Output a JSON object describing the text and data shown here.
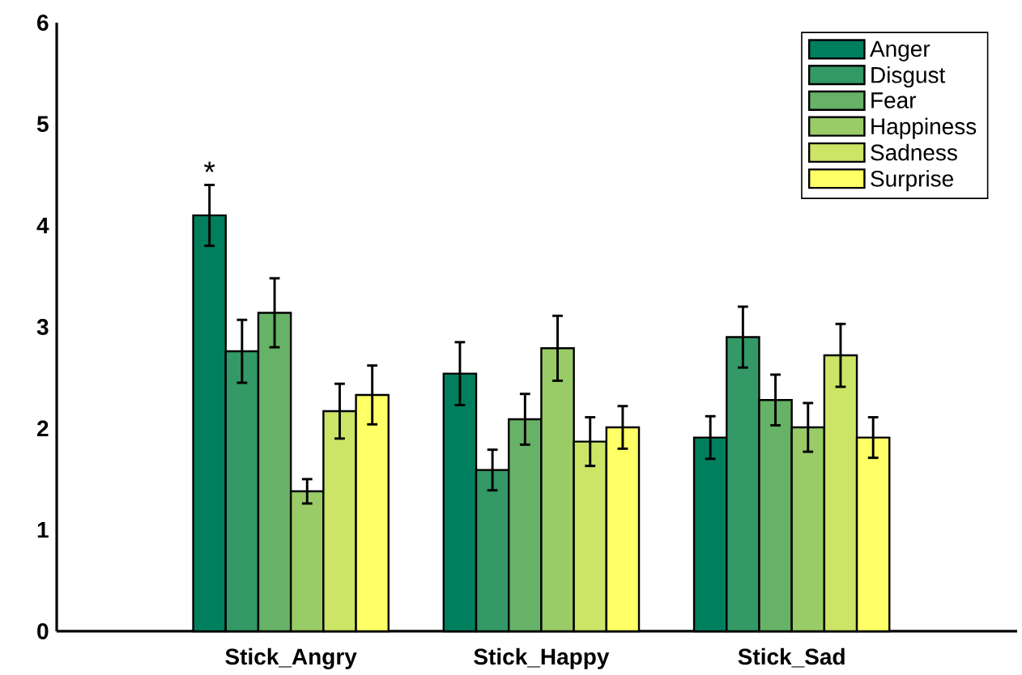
{
  "chart_data": {
    "type": "bar",
    "categories": [
      "Stick_Angry",
      "Stick_Happy",
      "Stick_Sad"
    ],
    "series": [
      {
        "name": "Anger",
        "color": "#007f5f",
        "values": [
          4.1,
          2.54,
          1.91
        ],
        "errors": [
          0.3,
          0.31,
          0.21
        ]
      },
      {
        "name": "Disgust",
        "color": "#339966",
        "values": [
          2.76,
          1.59,
          2.9
        ],
        "errors": [
          0.31,
          0.2,
          0.3
        ]
      },
      {
        "name": "Fear",
        "color": "#66b266",
        "values": [
          3.14,
          2.09,
          2.28
        ],
        "errors": [
          0.34,
          0.25,
          0.25
        ]
      },
      {
        "name": "Happiness",
        "color": "#99cc66",
        "values": [
          1.38,
          2.79,
          2.01
        ],
        "errors": [
          0.12,
          0.32,
          0.24
        ]
      },
      {
        "name": "Sadness",
        "color": "#cce566",
        "values": [
          2.17,
          1.87,
          2.72
        ],
        "errors": [
          0.27,
          0.24,
          0.31
        ]
      },
      {
        "name": "Surprise",
        "color": "#ffff66",
        "values": [
          2.33,
          2.01,
          1.91
        ],
        "errors": [
          0.29,
          0.21,
          0.2
        ]
      }
    ],
    "ylim": [
      0,
      6
    ],
    "yticks": [
      0,
      1,
      2,
      3,
      4,
      5,
      6
    ],
    "grid": false,
    "legend": "top right",
    "annotations": [
      "*"
    ]
  }
}
